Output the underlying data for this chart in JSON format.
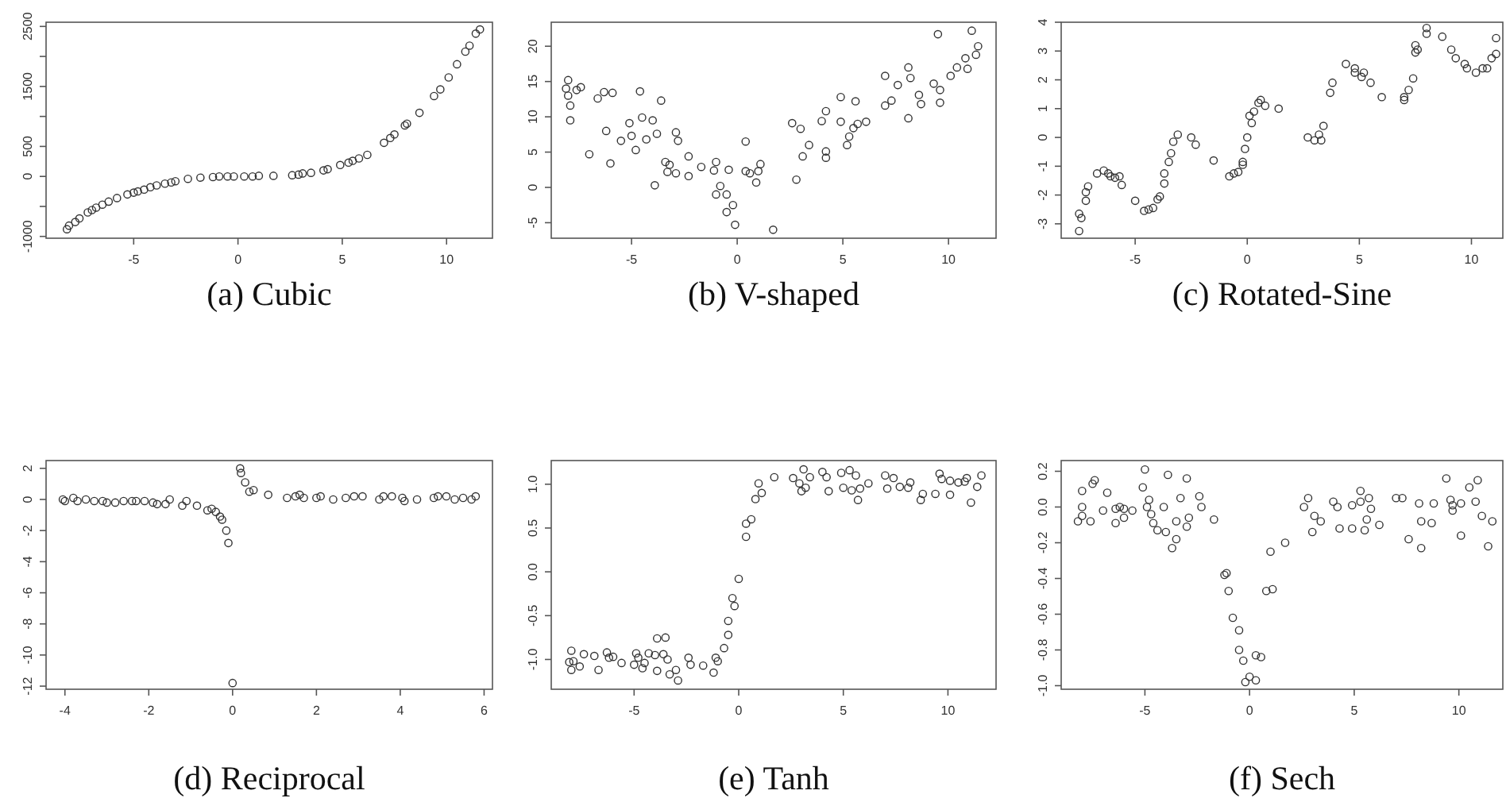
{
  "chart_data": [
    {
      "type": "scatter",
      "title": "(a) Cubic",
      "color": "#333333",
      "marker": "circle",
      "xlim": [
        -9.2,
        12.2
      ],
      "ylim": [
        -1030,
        2570
      ],
      "xticks": [
        -5,
        0,
        5,
        10
      ],
      "yticks": [
        -1000,
        {
          "value": -500,
          "label": null
        },
        0,
        500,
        {
          "value": 1000,
          "label": null
        },
        1500,
        {
          "value": 2000,
          "label": null
        },
        2500
      ],
      "x": [
        -8.2,
        -8.1,
        -7.8,
        -7.6,
        -7.2,
        -7,
        -6.8,
        -6.5,
        -6.2,
        -5.8,
        -5.3,
        -5,
        -4.8,
        -4.5,
        -4.2,
        -3.9,
        -3.5,
        -3.2,
        -3,
        -2.4,
        -1.8,
        -1.2,
        -0.9,
        -0.5,
        -0.2,
        0.3,
        0.7,
        1,
        1.7,
        2.6,
        2.9,
        3.1,
        3.5,
        4.1,
        4.3,
        4.9,
        5.3,
        5.5,
        5.8,
        6.2,
        7,
        7.3,
        7.5,
        8,
        8.1,
        8.7,
        9.4,
        9.7,
        10.1,
        10.5,
        10.9,
        11.1,
        11.4,
        11.6
      ],
      "values": [
        -880,
        -820,
        -760,
        -700,
        -600,
        -560,
        -520,
        -470,
        -420,
        -360,
        -300,
        -270,
        -250,
        -220,
        -180,
        -150,
        -120,
        -100,
        -80,
        -40,
        -20,
        -10,
        0,
        0,
        0,
        0,
        0,
        10,
        10,
        20,
        30,
        50,
        60,
        100,
        120,
        190,
        230,
        260,
        300,
        360,
        560,
        640,
        700,
        850,
        880,
        1060,
        1340,
        1450,
        1650,
        1870,
        2080,
        2180,
        2380,
        2450
      ]
    },
    {
      "type": "scatter",
      "title": "(b) V-shaped",
      "color": "#333333",
      "marker": "circle",
      "xlim": [
        -8.8,
        12.25
      ],
      "ylim": [
        -7.2,
        23.4
      ],
      "xticks": [
        -5,
        0,
        5,
        10
      ],
      "yticks": [
        -5,
        0,
        5,
        10,
        15,
        20
      ],
      "x": [
        -8.1,
        -8,
        -8,
        -7.9,
        -7.9,
        -7.6,
        -7.4,
        -7,
        -6.6,
        -6.3,
        -6.2,
        -6,
        -5.9,
        -5.5,
        -5.1,
        -5,
        -4.8,
        -4.6,
        -4.5,
        -4.3,
        -4,
        -3.9,
        -3.8,
        -3.6,
        -3.4,
        -3.3,
        -3.2,
        -2.9,
        -2.9,
        -2.8,
        -2.3,
        -2.3,
        -1.7,
        -1.1,
        -1,
        -1,
        -0.8,
        -0.5,
        -0.5,
        -0.4,
        -0.2,
        -0.1,
        0.4,
        0.4,
        0.6,
        0.9,
        1,
        1.1,
        1.7,
        2.6,
        2.8,
        3,
        3.1,
        3.4,
        4,
        4.2,
        4.2,
        4.2,
        4.9,
        4.9,
        5.2,
        5.3,
        5.5,
        5.6,
        5.7,
        6.1,
        7,
        7,
        7.3,
        7.6,
        8.1,
        8.1,
        8.2,
        8.6,
        8.7,
        9.3,
        9.5,
        9.6,
        9.6,
        10.1,
        10.4,
        10.8,
        10.9,
        11.1,
        11.3,
        11.4
      ],
      "values": [
        14,
        15.2,
        13,
        11.6,
        9.5,
        13.8,
        14.2,
        4.7,
        12.6,
        13.5,
        8,
        3.4,
        13.4,
        6.6,
        9.1,
        7.3,
        5.3,
        13.6,
        9.9,
        6.8,
        9.5,
        0.3,
        7.6,
        12.3,
        3.6,
        2.2,
        3.2,
        2,
        7.8,
        6.6,
        1.6,
        4.4,
        2.9,
        2.4,
        3.6,
        -1,
        0.2,
        -1,
        -3.5,
        2.5,
        -2.5,
        -5.3,
        6.5,
        2.3,
        2,
        0.7,
        2.3,
        3.3,
        -6,
        9.1,
        1.1,
        8.3,
        4.4,
        6,
        9.4,
        10.8,
        5.1,
        4.2,
        9.3,
        12.8,
        6,
        7.2,
        8.4,
        12.2,
        9,
        9.3,
        15.8,
        11.6,
        12.3,
        14.5,
        9.8,
        17,
        15.5,
        13.1,
        11.8,
        14.7,
        21.7,
        13.8,
        12,
        15.8,
        17,
        18.3,
        16.8,
        22.2,
        18.8,
        20
      ]
    },
    {
      "type": "scatter",
      "title": "(c) Rotated-Sine",
      "color": "#333333",
      "marker": "circle",
      "xlim": [
        -8.3,
        11.4
      ],
      "ylim": [
        -3.5,
        4
      ],
      "xticks": [
        -5,
        0,
        5,
        10
      ],
      "yticks": [
        -3,
        -2,
        -1,
        0,
        1,
        2,
        3,
        4
      ],
      "x": [
        -7.5,
        -7.5,
        -7.4,
        -7.2,
        -7.2,
        -7.1,
        -6.7,
        -6.4,
        -6.2,
        -6.1,
        -5.9,
        -5.7,
        -5.6,
        -5,
        -4.6,
        -4.4,
        -4.2,
        -4,
        -3.9,
        -3.7,
        -3.7,
        -3.5,
        -3.4,
        -3.3,
        -3.1,
        -2.5,
        -2.3,
        -1.5,
        -0.8,
        -0.6,
        -0.4,
        -0.2,
        -0.2,
        -0.1,
        0,
        0.1,
        0.2,
        0.3,
        0.5,
        0.6,
        0.8,
        1.4,
        2.7,
        3,
        3.2,
        3.3,
        3.4,
        3.7,
        3.8,
        4.4,
        4.8,
        4.8,
        5.1,
        5.2,
        5.5,
        6,
        7,
        7,
        7.2,
        7.4,
        7.5,
        7.5,
        7.6,
        8,
        8,
        8.7,
        9.1,
        9.3,
        9.7,
        9.8,
        10.2,
        10.5,
        10.7,
        10.9,
        11.1,
        11.1
      ],
      "values": [
        -2.65,
        -3.25,
        -2.8,
        -2.2,
        -1.9,
        -1.7,
        -1.25,
        -1.15,
        -1.25,
        -1.35,
        -1.4,
        -1.35,
        -1.65,
        -2.2,
        -2.55,
        -2.5,
        -2.45,
        -2.15,
        -2.05,
        -1.6,
        -1.25,
        -0.85,
        -0.55,
        -0.15,
        0.1,
        0,
        -0.25,
        -0.8,
        -1.35,
        -1.25,
        -1.2,
        -0.95,
        -0.85,
        -0.4,
        0,
        0.75,
        0.5,
        0.9,
        1.2,
        1.3,
        1.1,
        1,
        0,
        -0.1,
        0.1,
        -0.1,
        0.4,
        1.55,
        1.9,
        2.55,
        2.4,
        2.25,
        2.1,
        2.25,
        1.9,
        1.4,
        1.3,
        1.4,
        1.65,
        2.05,
        2.95,
        3.2,
        3.05,
        3.6,
        3.8,
        3.5,
        3.05,
        2.75,
        2.55,
        2.4,
        2.25,
        2.4,
        2.4,
        2.75,
        3.45,
        2.9
      ]
    },
    {
      "type": "scatter",
      "title": "(d) Reciprocal",
      "color": "#333333",
      "marker": "circle",
      "xlim": [
        -4.45,
        6.2
      ],
      "ylim": [
        -12.2,
        2.5
      ],
      "xticks": [
        -4,
        -2,
        0,
        2,
        4,
        6
      ],
      "yticks": [
        -12,
        -10,
        -8,
        -6,
        -4,
        -2,
        0,
        2
      ],
      "x": [
        -4.05,
        -4,
        -3.8,
        -3.7,
        -3.5,
        -3.3,
        -3.1,
        -3,
        -2.8,
        -2.6,
        -2.4,
        -2.3,
        -2.1,
        -1.9,
        -1.8,
        -1.6,
        -1.5,
        -1.2,
        -1.1,
        -0.85,
        -0.6,
        -0.5,
        -0.4,
        -0.3,
        -0.25,
        -0.15,
        -0.1,
        0,
        0.18,
        0.2,
        0.3,
        0.4,
        0.5,
        0.85,
        1.3,
        1.5,
        1.6,
        1.7,
        2,
        2.1,
        2.4,
        2.7,
        2.9,
        3.1,
        3.5,
        3.6,
        3.8,
        4.05,
        4.1,
        4.4,
        4.8,
        4.9,
        5.1,
        5.3,
        5.5,
        5.7,
        5.8
      ],
      "values": [
        0,
        -0.1,
        0.1,
        -0.1,
        0,
        -0.1,
        -0.1,
        -0.2,
        -0.2,
        -0.1,
        -0.1,
        -0.1,
        -0.1,
        -0.2,
        -0.3,
        -0.3,
        0,
        -0.4,
        -0.1,
        -0.4,
        -0.7,
        -0.6,
        -0.8,
        -1.1,
        -1.3,
        -2,
        -2.8,
        -11.8,
        2,
        1.7,
        1.1,
        0.5,
        0.6,
        0.3,
        0.1,
        0.2,
        0.3,
        0.1,
        0.1,
        0.2,
        0,
        0.1,
        0.2,
        0.2,
        0,
        0.2,
        0.2,
        0.1,
        -0.1,
        0,
        0.1,
        0.2,
        0.2,
        0,
        0.1,
        0,
        0.2
      ]
    },
    {
      "type": "scatter",
      "title": "(e) Tanh",
      "color": "#333333",
      "marker": "circle",
      "xlim": [
        -8.96,
        12.3
      ],
      "ylim": [
        -1.34,
        1.27
      ],
      "xticks": [
        -5,
        0,
        5,
        10
      ],
      "yticks": [
        {
          "value": -1,
          "label": "-1.0"
        },
        -0.5,
        {
          "value": 0,
          "label": "0.0"
        },
        0.5,
        {
          "value": 1,
          "label": "1.0"
        }
      ],
      "x": [
        -8.1,
        -8,
        -8,
        -7.9,
        -7.6,
        -7.4,
        -6.9,
        -6.7,
        -6.3,
        -6.2,
        -6,
        -5.6,
        -5,
        -4.9,
        -4.8,
        -4.6,
        -4.5,
        -4.3,
        -4,
        -3.9,
        -3.9,
        -3.6,
        -3.5,
        -3.4,
        -3.3,
        -3,
        -2.9,
        -2.4,
        -2.3,
        -1.7,
        -1.2,
        -1.1,
        -1,
        -0.7,
        -0.5,
        -0.5,
        -0.3,
        -0.2,
        0,
        0.35,
        0.35,
        0.6,
        0.8,
        0.95,
        1.1,
        1.7,
        2.6,
        2.9,
        3,
        3.1,
        3.2,
        3.4,
        4,
        4.2,
        4.3,
        4.9,
        5,
        5.3,
        5.4,
        5.6,
        5.7,
        5.8,
        6.2,
        7,
        7.1,
        7.4,
        7.7,
        8.1,
        8.2,
        8.7,
        8.8,
        9.4,
        9.6,
        9.7,
        10.1,
        10.1,
        10.5,
        10.8,
        10.9,
        11.1,
        11.4,
        11.6
      ],
      "values": [
        -1.03,
        -0.9,
        -1.12,
        -1.02,
        -1.08,
        -0.94,
        -0.96,
        -1.12,
        -0.92,
        -0.98,
        -0.97,
        -1.04,
        -1.06,
        -0.93,
        -0.98,
        -1.1,
        -1.04,
        -0.93,
        -0.95,
        -0.76,
        -1.13,
        -0.94,
        -0.75,
        -1,
        -1.17,
        -1.12,
        -1.24,
        -0.98,
        -1.06,
        -1.07,
        -1.15,
        -0.98,
        -1.02,
        -0.87,
        -0.72,
        -0.56,
        -0.3,
        -0.39,
        -0.08,
        0.4,
        0.55,
        0.6,
        0.83,
        1.01,
        0.9,
        1.08,
        1.07,
        1.01,
        0.92,
        1.17,
        0.96,
        1.08,
        1.14,
        1.08,
        0.92,
        1.13,
        0.96,
        1.16,
        0.93,
        1.1,
        0.82,
        0.95,
        1.01,
        1.1,
        0.95,
        1.07,
        0.97,
        0.96,
        1.02,
        0.82,
        0.89,
        0.89,
        1.12,
        1.06,
        0.88,
        1.04,
        1.02,
        1.03,
        1.07,
        0.79,
        0.97,
        1.1
      ]
    },
    {
      "type": "scatter",
      "title": "(f) Sech",
      "color": "#333333",
      "marker": "circle",
      "xlim": [
        -9,
        12.1
      ],
      "ylim": [
        -1.02,
        0.26
      ],
      "xticks": [
        -5,
        0,
        5,
        10
      ],
      "yticks": [
        {
          "value": -1,
          "label": "-1.0"
        },
        -0.8,
        -0.6,
        -0.4,
        -0.2,
        {
          "value": 0,
          "label": "0.0"
        },
        0.2
      ],
      "x": [
        -8.2,
        -8,
        -8,
        -8,
        -7.6,
        -7.5,
        -7.4,
        -6.8,
        -7,
        -6.4,
        -6.4,
        -6.2,
        -6,
        -6,
        -5.6,
        -5.1,
        -5,
        -4.9,
        -4.8,
        -4.7,
        -4.6,
        -4.4,
        -4.1,
        -4,
        -3.9,
        -3.7,
        -3.5,
        -3.5,
        -3.3,
        -3,
        -3,
        -2.9,
        -2.4,
        -2.3,
        -1.7,
        -1.2,
        -1.1,
        -1,
        -0.8,
        -0.5,
        -0.5,
        -0.3,
        -0.2,
        0,
        0.3,
        0.3,
        0.55,
        0.8,
        1,
        1.1,
        1.7,
        2.6,
        2.8,
        3,
        3.1,
        3.4,
        4,
        4.2,
        4.3,
        4.9,
        4.9,
        5.3,
        5.3,
        5.5,
        5.6,
        5.7,
        5.8,
        6.2,
        7,
        7.3,
        7.6,
        8.1,
        8.2,
        8.2,
        8.7,
        8.8,
        9.4,
        9.6,
        9.7,
        9.7,
        10.1,
        10.1,
        10.5,
        10.8,
        10.9,
        11.1,
        11.4,
        11.6
      ],
      "values": [
        -0.08,
        0.09,
        -0.05,
        0,
        -0.08,
        0.13,
        0.15,
        0.08,
        -0.02,
        -0.01,
        -0.09,
        0,
        -0.06,
        -0.01,
        -0.02,
        0.11,
        0.21,
        0,
        0.04,
        -0.04,
        -0.09,
        -0.13,
        0,
        -0.14,
        0.18,
        -0.23,
        -0.18,
        -0.08,
        0.05,
        0.16,
        -0.11,
        -0.06,
        0.06,
        0,
        -0.07,
        -0.38,
        -0.37,
        -0.47,
        -0.62,
        -0.69,
        -0.8,
        -0.86,
        -0.98,
        -0.95,
        -0.83,
        -0.97,
        -0.84,
        -0.47,
        -0.25,
        -0.46,
        -0.2,
        0,
        0.05,
        -0.14,
        -0.05,
        -0.08,
        0.03,
        0,
        -0.12,
        0.01,
        -0.12,
        0.09,
        0.03,
        -0.13,
        -0.07,
        0.05,
        -0.01,
        -0.1,
        0.05,
        0.05,
        -0.18,
        0.02,
        -0.23,
        -0.08,
        -0.09,
        0.02,
        0.16,
        0.04,
        0.01,
        -0.02,
        0.02,
        -0.16,
        0.11,
        0.03,
        0.15,
        -0.05,
        -0.22,
        -0.08
      ]
    }
  ]
}
